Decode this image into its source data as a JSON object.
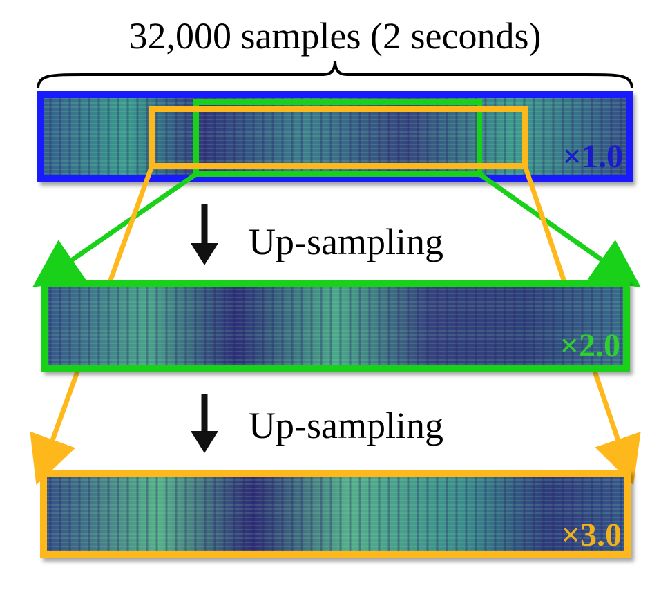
{
  "title": "32,000 samples (2 seconds)",
  "steps": [
    {
      "label": "Up-sampling"
    },
    {
      "label": "Up-sampling"
    }
  ],
  "panels": [
    {
      "id": "base",
      "scale_label": "×1.0",
      "color": "#1a1aff",
      "label_color": "#1a1acc"
    },
    {
      "id": "mid",
      "scale_label": "×2.0",
      "color": "#19d119",
      "label_color": "#2fcf2f"
    },
    {
      "id": "top",
      "scale_label": "×3.0",
      "color": "#ffb81c",
      "label_color": "#f2b01a"
    }
  ],
  "colors": {
    "background": "#ffffff",
    "arrow": "#111111",
    "spectrogram_dark": "#3c2f7a",
    "spectrogram_mid": "#2f6e8d",
    "spectrogram_bright": "#63c48b"
  }
}
